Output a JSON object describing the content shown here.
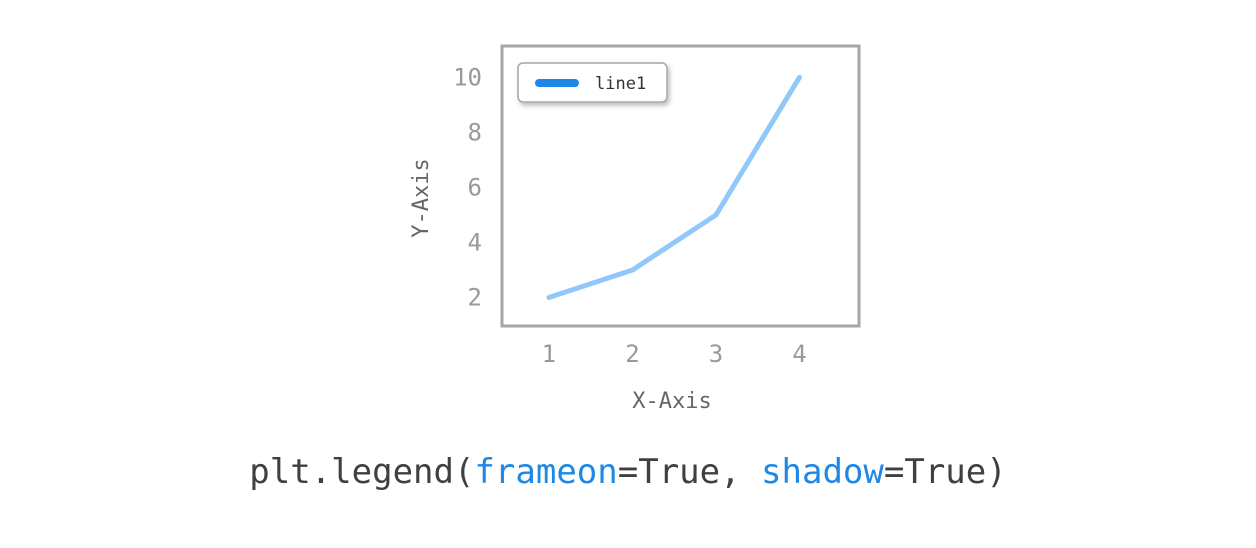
{
  "colors": {
    "line": "#90c8fb",
    "legend_handle": "#1e88e5",
    "keyword": "#1e88e5",
    "code_text": "#404040",
    "frame": "#a6a6a6"
  },
  "chart_data": {
    "type": "line",
    "x": [
      1,
      2,
      3,
      4
    ],
    "series": [
      {
        "name": "line1",
        "values": [
          2,
          3,
          5,
          10
        ]
      }
    ],
    "xlabel": "X-Axis",
    "ylabel": "Y-Axis",
    "xticks": [
      1,
      2,
      3,
      4
    ],
    "xtick_labels": [
      "1",
      "2",
      "3",
      "4"
    ],
    "yticks": [
      2,
      4,
      6,
      8,
      10
    ],
    "ytick_labels": [
      "2",
      "4",
      "6",
      "8",
      "10"
    ],
    "xlim": [
      0.45,
      4.7
    ],
    "ylim": [
      1.0,
      11.1
    ],
    "grid": false,
    "legend": {
      "position": "upper-left",
      "frameon": true,
      "shadow": true
    }
  },
  "code": {
    "prefix": "plt.legend(",
    "kw1": "frameon",
    "val1": "=True, ",
    "kw2": "shadow",
    "val2": "=True)"
  }
}
